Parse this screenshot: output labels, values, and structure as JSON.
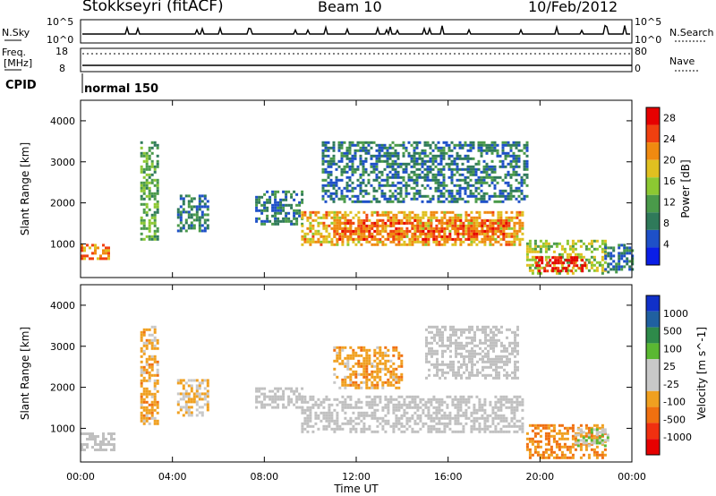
{
  "header": {
    "station": "Stokkseyri (fitACF)",
    "beam": "Beam 10",
    "date": "10/Feb/2012"
  },
  "noise_panel": {
    "left_label": "N.Sky",
    "right_label": "N.Search",
    "left_ticks": [
      "10^5",
      "10^0"
    ],
    "right_ticks": [
      "10^5",
      "10^0"
    ]
  },
  "freq_panel": {
    "left_label_top": "Freq.",
    "left_label_bottom": "[MHz]",
    "left_ticks": [
      "18",
      "8"
    ],
    "right_label": "Nave",
    "right_ticks": [
      "80",
      "0"
    ],
    "cpid_label": "CPID",
    "mode_text": "normal 150"
  },
  "colors": {
    "power_scale": [
      "#0a1ee6",
      "#1e50c8",
      "#2f7a5a",
      "#4a9a4a",
      "#8cc832",
      "#e0c020",
      "#f08a10",
      "#f04010",
      "#e60000"
    ],
    "velocity_scale": [
      "#1030c8",
      "#2060a0",
      "#2e8a4a",
      "#5ab832",
      "#c8c8c8",
      "#c8c8c8",
      "#f0a020",
      "#f07010",
      "#f03010",
      "#e60000"
    ],
    "ground_scatter": "#c0c0c0"
  },
  "chart_data": [
    {
      "type": "heatmap",
      "title": "Power",
      "xlabel": "Time UT",
      "ylabel": "Slant Range [km]",
      "x_ticks": [
        "00:00",
        "04:00",
        "08:00",
        "12:00",
        "16:00",
        "20:00",
        "00:00"
      ],
      "y_ticks": [
        "1000",
        "2000",
        "3000",
        "4000"
      ],
      "xlim_hours": [
        0,
        24
      ],
      "ylim_km": [
        180,
        4500
      ],
      "colorbar": {
        "label": "Power [dB]",
        "ticks": [
          "4",
          "8",
          "12",
          "16",
          "20",
          "24",
          "28"
        ],
        "range": [
          0,
          30
        ]
      },
      "regions": [
        {
          "t0": 0.0,
          "t1": 1.2,
          "r0": 650,
          "r1": 1000,
          "dB": 22
        },
        {
          "t0": 2.6,
          "t1": 3.4,
          "r0": 1100,
          "r1": 3500,
          "dB": 12
        },
        {
          "t0": 4.2,
          "t1": 5.5,
          "r0": 1300,
          "r1": 2200,
          "dB": 8
        },
        {
          "t0": 7.6,
          "t1": 9.6,
          "r0": 1500,
          "r1": 2300,
          "dB": 8
        },
        {
          "t0": 9.6,
          "t1": 19.2,
          "r0": 1000,
          "r1": 1800,
          "dB": 20
        },
        {
          "t0": 11.0,
          "t1": 18.5,
          "r0": 1100,
          "r1": 1600,
          "dB": 24
        },
        {
          "t0": 10.5,
          "t1": 19.5,
          "r0": 2000,
          "r1": 3500,
          "dB": 8
        },
        {
          "t0": 19.4,
          "t1": 22.8,
          "r0": 300,
          "r1": 1100,
          "dB": 16
        },
        {
          "t0": 19.8,
          "t1": 22.0,
          "r0": 350,
          "r1": 700,
          "dB": 28
        },
        {
          "t0": 22.8,
          "t1": 24.0,
          "r0": 300,
          "r1": 1000,
          "dB": 8
        }
      ]
    },
    {
      "type": "heatmap",
      "title": "Velocity",
      "xlabel": "Time UT",
      "ylabel": "Slant Range [km]",
      "x_ticks": [
        "00:00",
        "04:00",
        "08:00",
        "12:00",
        "16:00",
        "20:00",
        "00:00"
      ],
      "y_ticks": [
        "1000",
        "2000",
        "3000",
        "4000"
      ],
      "xlim_hours": [
        0,
        24
      ],
      "ylim_km": [
        180,
        4500
      ],
      "colorbar": {
        "label": "Velocity [m s^-1]",
        "ticks": [
          "1000",
          "500",
          "100",
          "25",
          "-25",
          "-100",
          "-500",
          "-1000"
        ],
        "range": [
          -1000,
          1000
        ]
      },
      "regions": [
        {
          "t0": 0.0,
          "t1": 1.5,
          "r0": 500,
          "r1": 900,
          "vel": 0,
          "gs": true
        },
        {
          "t0": 2.6,
          "t1": 3.4,
          "r0": 1100,
          "r1": 3500,
          "vel": -300
        },
        {
          "t0": 4.2,
          "t1": 5.5,
          "r0": 1300,
          "r1": 2200,
          "vel": -200
        },
        {
          "t0": 7.6,
          "t1": 9.6,
          "r0": 1500,
          "r1": 2000,
          "vel": 0,
          "gs": true
        },
        {
          "t0": 9.6,
          "t1": 19.2,
          "r0": 900,
          "r1": 1800,
          "vel": 0,
          "gs": true
        },
        {
          "t0": 11.0,
          "t1": 14.0,
          "r0": 2000,
          "r1": 3000,
          "vel": -300
        },
        {
          "t0": 15.0,
          "t1": 19.0,
          "r0": 2200,
          "r1": 3500,
          "vel": 0,
          "gs": true
        },
        {
          "t0": 19.4,
          "t1": 22.8,
          "r0": 300,
          "r1": 1100,
          "vel": -400
        },
        {
          "t0": 21.5,
          "t1": 23.0,
          "r0": 600,
          "r1": 1000,
          "vel": 200
        }
      ]
    }
  ]
}
